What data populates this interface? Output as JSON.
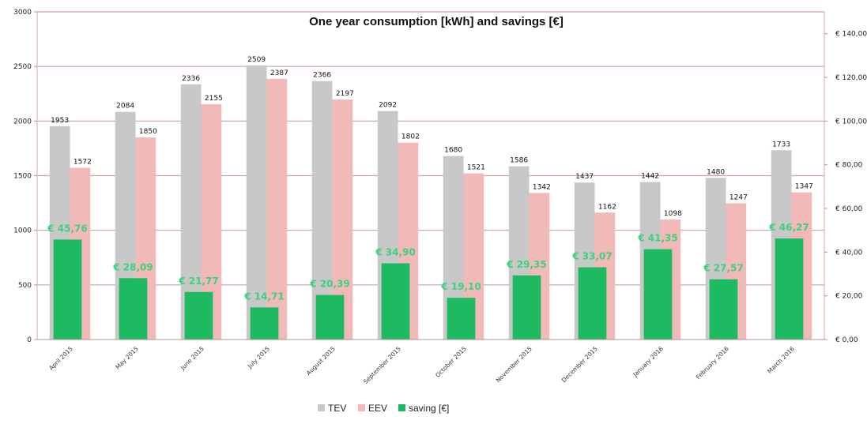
{
  "chart_data": {
    "type": "bar",
    "title": "One year consumption [kWh] and savings [€]",
    "categories": [
      "April 2015",
      "May 2015",
      "June 2015",
      "July 2015",
      "August 2015",
      "September 2015",
      "October 2015",
      "November 2015",
      "December 2015",
      "January 2016",
      "February 2016",
      "March 2016"
    ],
    "series": [
      {
        "name": "TEV",
        "axis": "left",
        "color": "#c8c8c8",
        "values": [
          1953,
          2084,
          2336,
          2509,
          2366,
          2092,
          1680,
          1586,
          1437,
          1442,
          1480,
          1733
        ],
        "labels": [
          "1953",
          "2084",
          "2336",
          "2509",
          "2366",
          "2092",
          "1680",
          "1586",
          "1437",
          "1442",
          "1480",
          "1733"
        ]
      },
      {
        "name": "EEV",
        "axis": "left",
        "color": "#f1b9b7",
        "values": [
          1572,
          1850,
          2155,
          2387,
          2197,
          1802,
          1521,
          1342,
          1162,
          1098,
          1247,
          1347
        ],
        "labels": [
          "1572",
          "1850",
          "2155",
          "2387",
          "2197",
          "1802",
          "1521",
          "1342",
          "1162",
          "1098",
          "1247",
          "1347"
        ]
      },
      {
        "name": "saving [€]",
        "axis": "right",
        "color": "#1dba62",
        "values": [
          45.76,
          28.09,
          21.77,
          14.71,
          20.39,
          34.9,
          19.1,
          29.35,
          33.07,
          41.35,
          27.57,
          46.27
        ],
        "labels": [
          "€ 45,76",
          "€ 28,09",
          "€ 21,77",
          "€ 14,71",
          "€ 20,39",
          "€ 34,90",
          "€ 19,10",
          "€ 29,35",
          "€ 33,07",
          "€ 41,35",
          "€ 27,57",
          "€ 46,27"
        ]
      }
    ],
    "y_left": {
      "min": 0,
      "max": 3000,
      "ticks": [
        "0",
        "500",
        "1000",
        "1500",
        "2000",
        "2500",
        "3000"
      ]
    },
    "y_right": {
      "min": 0,
      "max": 150,
      "ticks": [
        "€ 0,00",
        "€ 20,00",
        "€ 40,00",
        "€ 60,00",
        "€ 80,00",
        "€ 100,00",
        "€ 120,00",
        "€ 140,00"
      ]
    },
    "grid": true,
    "legend_position": "bottom",
    "label_color_saving": "#3fd07f"
  }
}
